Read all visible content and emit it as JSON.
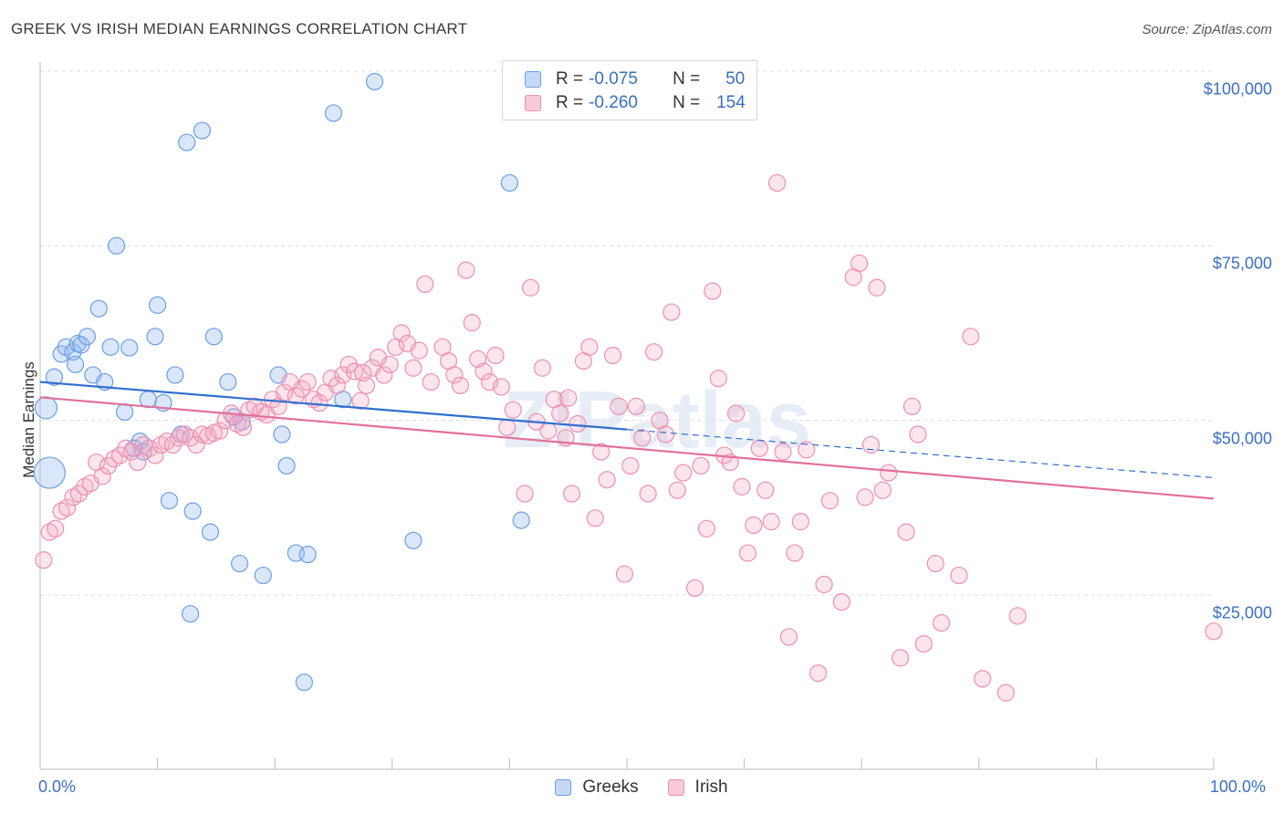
{
  "title": "GREEK VS IRISH MEDIAN EARNINGS CORRELATION CHART",
  "source": "Source: ZipAtlas.com",
  "watermark": "ZIPatlas",
  "legend_top": [
    {
      "r_label": "R =",
      "r_value": "-0.075",
      "n_label": "N =",
      "n_value": "50",
      "color": "#6a9ee6"
    },
    {
      "r_label": "R =",
      "r_value": "-0.260",
      "n_label": "N =",
      "n_value": "154",
      "color": "#ee8fb0"
    }
  ],
  "chart_data": {
    "type": "scatter",
    "xlabel": "",
    "ylabel": "Median Earnings",
    "x_tick_labels": [
      "0.0%",
      "100.0%"
    ],
    "y_tick_labels": [
      "$25,000",
      "$50,000",
      "$75,000",
      "$100,000"
    ],
    "y_ticks": [
      25000,
      50000,
      75000,
      100000
    ],
    "xlim": [
      0,
      100
    ],
    "ylim": [
      3000,
      105000
    ],
    "grid": true,
    "series": [
      {
        "name": "Greeks",
        "color": "#6a9ee6",
        "trend": {
          "x": [
            0,
            50
          ],
          "y": [
            55500,
            48700
          ],
          "dashed_to": [
            100,
            41800
          ]
        },
        "points": [
          [
            0.5,
            51800
          ],
          [
            0.8,
            42500
          ],
          [
            1.2,
            56200
          ],
          [
            1.8,
            59500
          ],
          [
            2.2,
            60500
          ],
          [
            2.8,
            59800
          ],
          [
            3.2,
            61000
          ],
          [
            3.5,
            60800
          ],
          [
            4.0,
            62000
          ],
          [
            4.5,
            56500
          ],
          [
            5.0,
            66000
          ],
          [
            5.5,
            55500
          ],
          [
            6.0,
            60500
          ],
          [
            6.5,
            75000
          ],
          [
            7.2,
            51200
          ],
          [
            7.6,
            60400
          ],
          [
            8.5,
            47000
          ],
          [
            8.8,
            45500
          ],
          [
            9.2,
            53000
          ],
          [
            9.8,
            62000
          ],
          [
            10.0,
            66500
          ],
          [
            10.5,
            52500
          ],
          [
            11.0,
            38500
          ],
          [
            11.5,
            56500
          ],
          [
            12.0,
            48000
          ],
          [
            12.5,
            89800
          ],
          [
            12.8,
            22300
          ],
          [
            13.0,
            37000
          ],
          [
            13.8,
            91500
          ],
          [
            14.5,
            34000
          ],
          [
            14.8,
            62000
          ],
          [
            16.0,
            55500
          ],
          [
            17.0,
            29500
          ],
          [
            17.2,
            49800
          ],
          [
            19.0,
            27800
          ],
          [
            20.3,
            56500
          ],
          [
            20.6,
            48000
          ],
          [
            21.0,
            43500
          ],
          [
            21.8,
            31000
          ],
          [
            22.5,
            12500
          ],
          [
            22.8,
            30800
          ],
          [
            25.0,
            94000
          ],
          [
            25.8,
            53000
          ],
          [
            28.5,
            98500
          ],
          [
            31.8,
            32800
          ],
          [
            40.0,
            84000
          ],
          [
            41.0,
            35700
          ],
          [
            3.0,
            58000
          ],
          [
            8.0,
            46000
          ],
          [
            16.5,
            50500
          ]
        ]
      },
      {
        "name": "Irish",
        "color": "#ee8fb0",
        "trend": {
          "x": [
            0,
            100
          ],
          "y": [
            53300,
            38800
          ]
        },
        "points": [
          [
            0.3,
            30000
          ],
          [
            0.8,
            34000
          ],
          [
            1.3,
            34500
          ],
          [
            1.8,
            37000
          ],
          [
            2.3,
            37500
          ],
          [
            2.8,
            39000
          ],
          [
            3.3,
            39500
          ],
          [
            3.8,
            40500
          ],
          [
            4.3,
            41000
          ],
          [
            4.8,
            44000
          ],
          [
            5.3,
            42000
          ],
          [
            5.8,
            43500
          ],
          [
            6.3,
            44500
          ],
          [
            6.8,
            45000
          ],
          [
            7.3,
            46000
          ],
          [
            7.8,
            45500
          ],
          [
            8.3,
            44000
          ],
          [
            8.8,
            46500
          ],
          [
            9.3,
            46000
          ],
          [
            9.8,
            45000
          ],
          [
            10.3,
            46500
          ],
          [
            10.8,
            47000
          ],
          [
            11.3,
            46500
          ],
          [
            11.8,
            47500
          ],
          [
            12.3,
            48000
          ],
          [
            12.8,
            47500
          ],
          [
            13.3,
            46500
          ],
          [
            13.8,
            48000
          ],
          [
            14.3,
            47800
          ],
          [
            14.8,
            48200
          ],
          [
            15.3,
            48500
          ],
          [
            15.8,
            50000
          ],
          [
            16.3,
            51000
          ],
          [
            16.8,
            49500
          ],
          [
            17.3,
            49000
          ],
          [
            17.8,
            51500
          ],
          [
            18.3,
            52000
          ],
          [
            18.8,
            51200
          ],
          [
            19.3,
            50800
          ],
          [
            19.8,
            53000
          ],
          [
            20.3,
            52000
          ],
          [
            20.8,
            54000
          ],
          [
            21.3,
            55500
          ],
          [
            21.8,
            53500
          ],
          [
            22.3,
            54500
          ],
          [
            22.8,
            55500
          ],
          [
            23.3,
            53000
          ],
          [
            23.8,
            52500
          ],
          [
            24.3,
            54000
          ],
          [
            24.8,
            56000
          ],
          [
            25.3,
            55000
          ],
          [
            25.8,
            56500
          ],
          [
            26.3,
            58000
          ],
          [
            26.8,
            57000
          ],
          [
            27.3,
            52800
          ],
          [
            27.8,
            55000
          ],
          [
            28.3,
            57500
          ],
          [
            28.8,
            59000
          ],
          [
            29.3,
            56500
          ],
          [
            29.8,
            58000
          ],
          [
            30.3,
            60500
          ],
          [
            30.8,
            62500
          ],
          [
            31.3,
            61000
          ],
          [
            31.8,
            57500
          ],
          [
            32.3,
            60000
          ],
          [
            32.8,
            69500
          ],
          [
            33.3,
            55500
          ],
          [
            34.3,
            60500
          ],
          [
            34.8,
            58500
          ],
          [
            35.3,
            56500
          ],
          [
            35.8,
            55000
          ],
          [
            36.3,
            71500
          ],
          [
            36.8,
            64000
          ],
          [
            37.3,
            58800
          ],
          [
            37.8,
            57000
          ],
          [
            38.3,
            55500
          ],
          [
            38.8,
            59300
          ],
          [
            39.3,
            54800
          ],
          [
            39.8,
            49000
          ],
          [
            40.3,
            51500
          ],
          [
            41.3,
            39500
          ],
          [
            41.8,
            69000
          ],
          [
            42.3,
            49800
          ],
          [
            42.8,
            57500
          ],
          [
            43.3,
            48500
          ],
          [
            43.8,
            53000
          ],
          [
            44.3,
            51000
          ],
          [
            44.8,
            47500
          ],
          [
            45.3,
            39500
          ],
          [
            45.8,
            49500
          ],
          [
            46.3,
            58500
          ],
          [
            46.8,
            60500
          ],
          [
            47.3,
            36000
          ],
          [
            47.8,
            45500
          ],
          [
            48.3,
            41500
          ],
          [
            48.8,
            59300
          ],
          [
            49.3,
            52000
          ],
          [
            49.8,
            28000
          ],
          [
            50.3,
            43500
          ],
          [
            50.8,
            52000
          ],
          [
            51.3,
            47500
          ],
          [
            51.8,
            39500
          ],
          [
            52.3,
            59800
          ],
          [
            52.8,
            50000
          ],
          [
            53.3,
            48000
          ],
          [
            53.8,
            65500
          ],
          [
            54.3,
            40000
          ],
          [
            54.8,
            42500
          ],
          [
            55.8,
            26000
          ],
          [
            56.3,
            43500
          ],
          [
            56.8,
            34500
          ],
          [
            57.3,
            68500
          ],
          [
            57.8,
            56000
          ],
          [
            58.3,
            45000
          ],
          [
            58.8,
            44000
          ],
          [
            59.3,
            51000
          ],
          [
            59.8,
            40500
          ],
          [
            60.3,
            31000
          ],
          [
            60.8,
            35000
          ],
          [
            61.3,
            46000
          ],
          [
            61.8,
            40000
          ],
          [
            62.3,
            35500
          ],
          [
            62.8,
            84000
          ],
          [
            63.3,
            45500
          ],
          [
            63.8,
            19000
          ],
          [
            64.3,
            31000
          ],
          [
            64.8,
            35500
          ],
          [
            65.3,
            45800
          ],
          [
            66.3,
            13800
          ],
          [
            66.8,
            26500
          ],
          [
            67.3,
            38500
          ],
          [
            68.3,
            24000
          ],
          [
            69.3,
            70500
          ],
          [
            69.8,
            72500
          ],
          [
            70.3,
            39000
          ],
          [
            70.8,
            46500
          ],
          [
            71.3,
            69000
          ],
          [
            71.8,
            40000
          ],
          [
            72.3,
            42500
          ],
          [
            73.3,
            16000
          ],
          [
            73.8,
            34000
          ],
          [
            74.3,
            52000
          ],
          [
            74.8,
            48000
          ],
          [
            75.3,
            18000
          ],
          [
            76.3,
            29500
          ],
          [
            76.8,
            21000
          ],
          [
            78.3,
            27800
          ],
          [
            79.3,
            62000
          ],
          [
            80.3,
            13000
          ],
          [
            82.3,
            11000
          ],
          [
            83.3,
            22000
          ],
          [
            100.0,
            19800
          ],
          [
            45.0,
            53200
          ],
          [
            27.5,
            56800
          ]
        ]
      }
    ]
  }
}
